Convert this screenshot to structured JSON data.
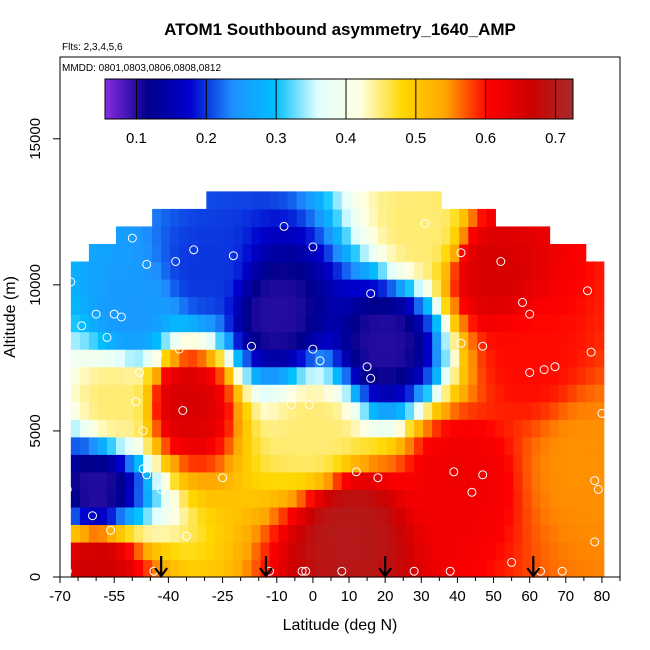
{
  "chart_data": {
    "type": "heatmap",
    "title": "ATOM1 Southbound asymmetry_1640_AMP",
    "subtitle_flights": "Flts: 2,3,4,5,6",
    "subtitle_dates": "MMDD: 0801,0803,0806,0808,0812",
    "xlabel": "Latitude (deg N)",
    "ylabel": "Altitude (m)",
    "xlim": [
      -70,
      85
    ],
    "ylim": [
      0,
      17800
    ],
    "x_ticks": [
      -70,
      -55,
      -40,
      -25,
      -10,
      0,
      10,
      20,
      30,
      40,
      50,
      60,
      70,
      80
    ],
    "y_ticks": [
      0,
      5000,
      10000,
      15000
    ],
    "colorbar": {
      "range": [
        0.055,
        0.725
      ],
      "ticks": [
        0.1,
        0.2,
        0.3,
        0.4,
        0.5,
        0.6,
        0.7
      ],
      "tick_labels": [
        "0.1",
        "0.2",
        "0.3",
        "0.4",
        "0.5",
        "0.6",
        "0.7"
      ],
      "colors": [
        "#8a2be2",
        "#00008b",
        "#0000cd",
        "#1e90ff",
        "#00bfff",
        "#e0ffff",
        "#ffffe0",
        "#ffd700",
        "#ffa500",
        "#ff0000",
        "#cd0000",
        "#a52a2a"
      ]
    },
    "field_center_values": [
      {
        "lat": -60,
        "alt": 500,
        "value": 0.66
      },
      {
        "lat": -60,
        "alt": 3000,
        "value": 0.1
      },
      {
        "lat": -55,
        "alt": 6000,
        "value": 0.45
      },
      {
        "lat": -50,
        "alt": 9000,
        "value": 0.25
      },
      {
        "lat": -35,
        "alt": 6000,
        "value": 0.65
      },
      {
        "lat": -30,
        "alt": 10500,
        "value": 0.2
      },
      {
        "lat": -10,
        "alt": 9000,
        "value": 0.1
      },
      {
        "lat": 0,
        "alt": 5000,
        "value": 0.45
      },
      {
        "lat": 10,
        "alt": 1500,
        "value": 0.7
      },
      {
        "lat": 20,
        "alt": 8000,
        "value": 0.1
      },
      {
        "lat": 30,
        "alt": 12000,
        "value": 0.45
      },
      {
        "lat": 40,
        "alt": 3500,
        "value": 0.62
      },
      {
        "lat": 50,
        "alt": 10500,
        "value": 0.65
      },
      {
        "lat": 60,
        "alt": 7500,
        "value": 0.6
      },
      {
        "lat": 75,
        "alt": 4000,
        "value": 0.55
      }
    ],
    "sample_points": [
      [
        -68,
        200
      ],
      [
        -68,
        3000
      ],
      [
        -67,
        10100
      ],
      [
        -64,
        8600
      ],
      [
        -61,
        2100
      ],
      [
        -60,
        9000
      ],
      [
        -57,
        8200
      ],
      [
        -56,
        1600
      ],
      [
        -55,
        9000
      ],
      [
        -53,
        8900
      ],
      [
        -50,
        11600
      ],
      [
        -49,
        6000
      ],
      [
        -48,
        7000
      ],
      [
        -47,
        5000
      ],
      [
        -47,
        3700
      ],
      [
        -46,
        3500
      ],
      [
        -46,
        10700
      ],
      [
        -44,
        200
      ],
      [
        -43,
        7600
      ],
      [
        -42,
        3000
      ],
      [
        -38,
        10800
      ],
      [
        -37,
        7800
      ],
      [
        -36,
        5700
      ],
      [
        -35,
        1400
      ],
      [
        -33,
        11200
      ],
      [
        -25,
        3400
      ],
      [
        -22,
        11000
      ],
      [
        -17,
        7900
      ],
      [
        -12,
        200
      ],
      [
        -8,
        12000
      ],
      [
        -6,
        5900
      ],
      [
        -3,
        200
      ],
      [
        -2,
        200
      ],
      [
        0,
        11300
      ],
      [
        -1,
        5900
      ],
      [
        0,
        7800
      ],
      [
        2,
        7400
      ],
      [
        8,
        200
      ],
      [
        12,
        3600
      ],
      [
        15,
        7200
      ],
      [
        16,
        9700
      ],
      [
        16,
        6800
      ],
      [
        18,
        3400
      ],
      [
        28,
        200
      ],
      [
        31,
        12100
      ],
      [
        38,
        200
      ],
      [
        39,
        3600
      ],
      [
        41,
        11100
      ],
      [
        41,
        8000
      ],
      [
        44,
        2900
      ],
      [
        47,
        3500
      ],
      [
        47,
        7900
      ],
      [
        52,
        10800
      ],
      [
        55,
        500
      ],
      [
        58,
        9400
      ],
      [
        60,
        7000
      ],
      [
        60,
        9000
      ],
      [
        63,
        200
      ],
      [
        64,
        7100
      ],
      [
        67,
        7200
      ],
      [
        69,
        200
      ],
      [
        76,
        9800
      ],
      [
        77,
        7700
      ],
      [
        79,
        3000
      ],
      [
        78,
        3300
      ],
      [
        80,
        5600
      ],
      [
        78,
        1200
      ]
    ],
    "arrows_lat": [
      -42,
      -13,
      20,
      61
    ],
    "axis_max_value": 17800
  }
}
